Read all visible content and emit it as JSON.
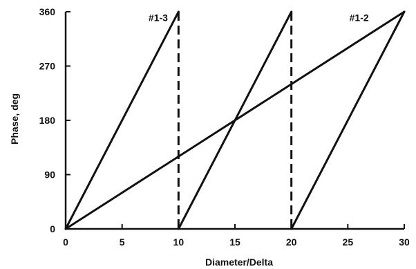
{
  "chart_data": {
    "type": "line",
    "title": "",
    "xlabel": "Diameter/Delta",
    "ylabel": "Phase, deg",
    "xlim": [
      0,
      30
    ],
    "ylim": [
      0,
      360
    ],
    "x_ticks": [
      0,
      5,
      10,
      15,
      20,
      25,
      30
    ],
    "y_ticks": [
      0,
      90,
      180,
      270,
      360
    ],
    "grid": false,
    "legend": "none",
    "series": [
      {
        "name": "#1-3",
        "segments": [
          {
            "x": [
              0,
              10
            ],
            "y": [
              0,
              360
            ],
            "style": "solid"
          },
          {
            "x": [
              10,
              10
            ],
            "y": [
              360,
              0
            ],
            "style": "dashed"
          },
          {
            "x": [
              10,
              20
            ],
            "y": [
              0,
              360
            ],
            "style": "solid"
          },
          {
            "x": [
              20,
              20
            ],
            "y": [
              360,
              0
            ],
            "style": "dashed"
          },
          {
            "x": [
              20,
              30
            ],
            "y": [
              0,
              360
            ],
            "style": "solid"
          }
        ]
      },
      {
        "name": "#1-2",
        "segments": [
          {
            "x": [
              0,
              30
            ],
            "y": [
              0,
              360
            ],
            "style": "solid"
          }
        ]
      }
    ],
    "annotations": [
      {
        "text": "#1-3",
        "x": 8.2,
        "y": 350
      },
      {
        "text": "#1-2",
        "x": 26.0,
        "y": 350
      }
    ],
    "line_color": "#111111"
  }
}
